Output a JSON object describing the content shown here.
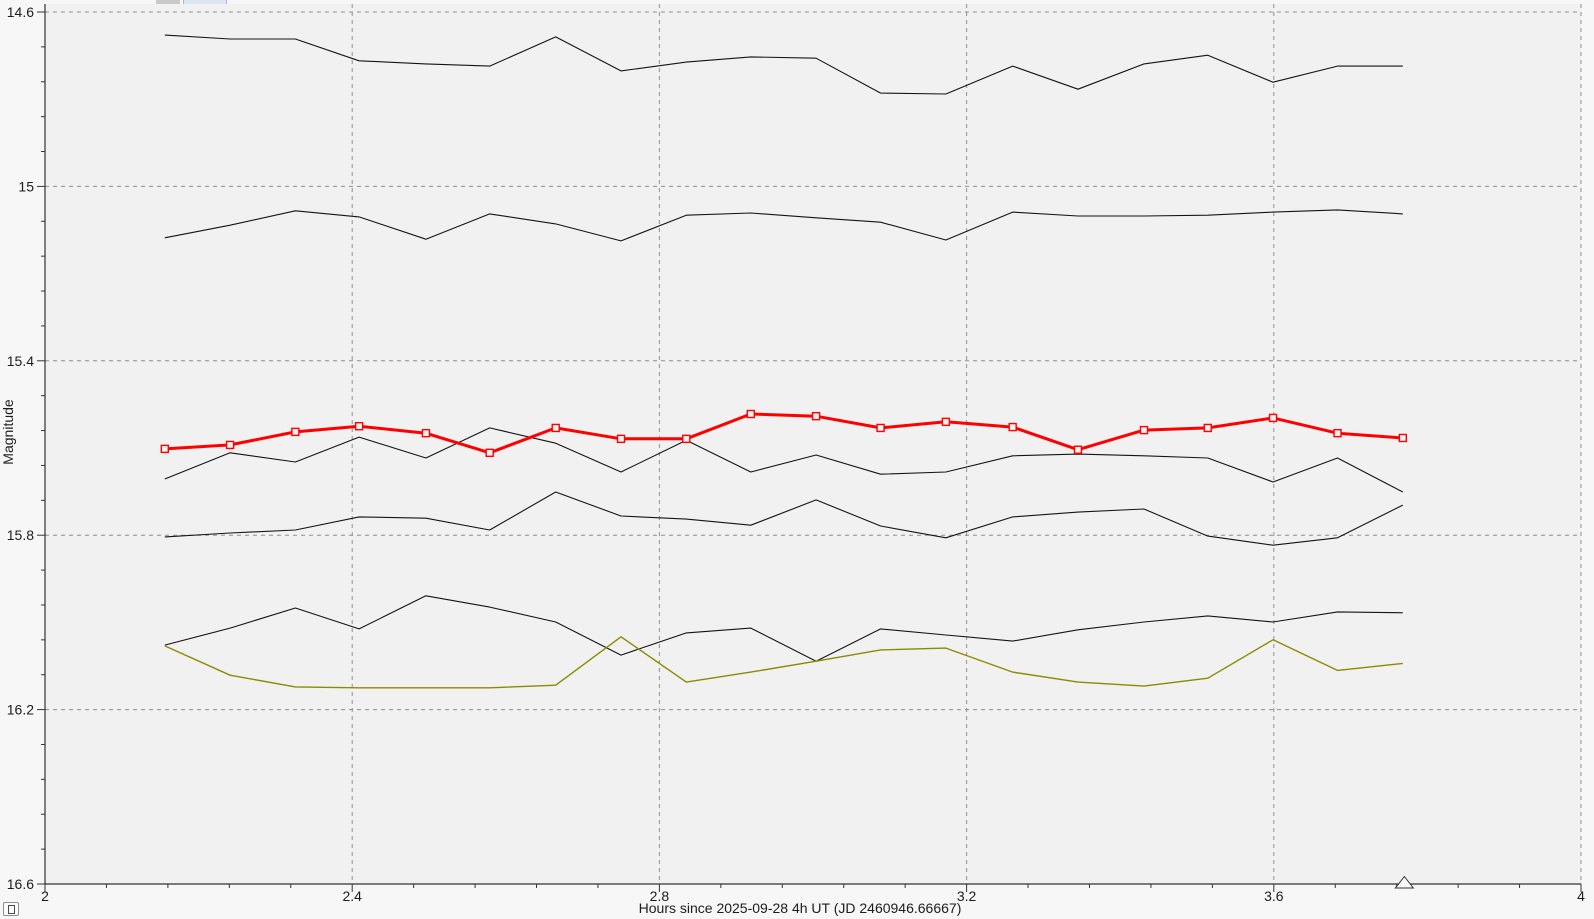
{
  "window": {
    "outer_background": "#f7f7f7",
    "plot_background": "#f1f1f1",
    "frame_color": "#333333",
    "grid_color": "#909090",
    "text_color": "#1c1c1c"
  },
  "controls": {
    "corner_button": {
      "icon": "open-square-icon"
    }
  },
  "chart_data": {
    "type": "line",
    "title": "",
    "xlabel": "Hours since 2025-09-28 4h UT (JD 2460946.66667)",
    "ylabel": "Magnitude",
    "xlim": [
      2,
      4
    ],
    "ylim": [
      14.6,
      16.6
    ],
    "y_axis_inverted_magnitude": true,
    "grid": "dashed-major",
    "legend": "none",
    "x_major_ticks": [
      2,
      2.4,
      2.8,
      3.2,
      3.6,
      4
    ],
    "x_tick_labels": [
      "2",
      "2.4",
      "2.8",
      "3.2",
      "3.6",
      "4"
    ],
    "x_gridline_values": [
      2.4,
      2.8,
      3.2,
      3.6,
      4
    ],
    "y_major_ticks": [
      14.6,
      15,
      15.4,
      15.8,
      16.2,
      16.6
    ],
    "y_tick_labels": [
      "14.6",
      "15",
      "15.4",
      "15.8",
      "16.2",
      "16.6"
    ],
    "minor_tick_step": 0.08,
    "hours": [
      2.156,
      2.241,
      2.326,
      2.409,
      2.496,
      2.579,
      2.665,
      2.75,
      2.835,
      2.919,
      3.004,
      3.088,
      3.173,
      3.26,
      3.345,
      3.431,
      3.514,
      3.599,
      3.683,
      3.768
    ],
    "series": [
      {
        "name": "dark-line-1",
        "color": "#141414",
        "width": 1.1,
        "marker": null,
        "mags": [
          14.653,
          14.662,
          14.662,
          14.712,
          14.719,
          14.724,
          14.657,
          14.735,
          14.715,
          14.703,
          14.706,
          14.786,
          14.788,
          14.724,
          14.777,
          14.719,
          14.699,
          14.761,
          14.724,
          14.724
        ]
      },
      {
        "name": "dark-line-2",
        "color": "#141414",
        "width": 1.1,
        "marker": null,
        "mags": [
          15.118,
          15.089,
          15.056,
          15.07,
          15.121,
          15.063,
          15.086,
          15.125,
          15.066,
          15.061,
          15.072,
          15.082,
          15.123,
          15.059,
          15.068,
          15.068,
          15.066,
          15.059,
          15.054,
          15.063
        ]
      },
      {
        "name": "dark-line-3",
        "color": "#141414",
        "width": 1.1,
        "marker": null,
        "mags": [
          15.671,
          15.611,
          15.632,
          15.575,
          15.623,
          15.554,
          15.589,
          15.655,
          15.582,
          15.655,
          15.616,
          15.66,
          15.655,
          15.618,
          15.614,
          15.618,
          15.623,
          15.678,
          15.623,
          15.701
        ]
      },
      {
        "name": "dark-line-4",
        "color": "#141414",
        "width": 1.1,
        "marker": null,
        "mags": [
          15.804,
          15.795,
          15.788,
          15.758,
          15.761,
          15.788,
          15.701,
          15.756,
          15.763,
          15.777,
          15.719,
          15.779,
          15.806,
          15.758,
          15.747,
          15.74,
          15.802,
          15.823,
          15.806,
          15.731
        ]
      },
      {
        "name": "dark-line-5",
        "color": "#141414",
        "width": 1.1,
        "marker": null,
        "mags": [
          16.052,
          16.013,
          15.967,
          16.015,
          15.939,
          15.965,
          15.999,
          16.075,
          16.024,
          16.013,
          16.089,
          16.015,
          16.029,
          16.043,
          16.017,
          15.999,
          15.985,
          15.999,
          15.976,
          15.978
        ]
      },
      {
        "name": "olive-line",
        "color": "#8b8b00",
        "width": 1.4,
        "marker": null,
        "mags": [
          16.054,
          16.121,
          16.148,
          16.15,
          16.15,
          16.15,
          16.144,
          16.033,
          16.137,
          16.114,
          16.089,
          16.063,
          16.059,
          16.114,
          16.137,
          16.146,
          16.128,
          16.04,
          16.11,
          16.094
        ]
      },
      {
        "name": "red-line-with-markers",
        "color": "#ff0000",
        "width": 3,
        "marker": "open-square",
        "mags": [
          15.602,
          15.593,
          15.563,
          15.55,
          15.566,
          15.611,
          15.554,
          15.579,
          15.579,
          15.522,
          15.527,
          15.554,
          15.54,
          15.552,
          15.604,
          15.559,
          15.554,
          15.531,
          15.566,
          15.577
        ]
      }
    ],
    "annotations": {
      "axis_triangle_marker_hour": 3.77
    }
  }
}
